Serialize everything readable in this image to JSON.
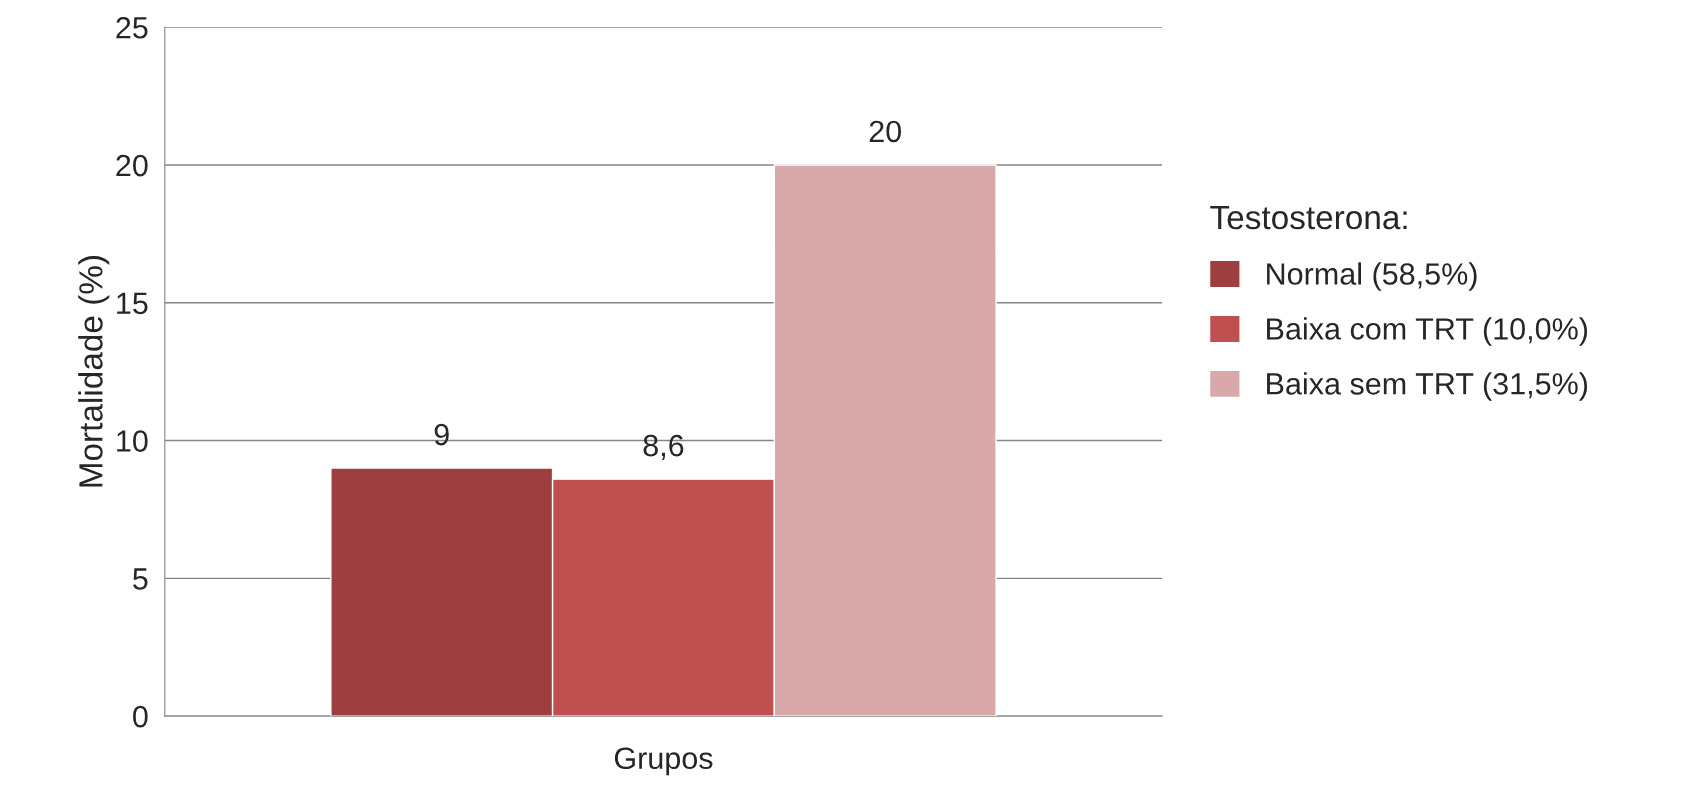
{
  "chart_data": {
    "type": "bar",
    "categories": [
      "Grupos"
    ],
    "ylabel": "Mortalidade (%)",
    "legend_title": "Testosterona:",
    "series": [
      {
        "name": "Normal (58,5%)",
        "color": "#9e3f3f",
        "values": [
          9
        ],
        "value_labels": [
          "9"
        ]
      },
      {
        "name": "Baixa com TRT (10,0%)",
        "color": "#c0504f",
        "values": [
          8.6
        ],
        "value_labels": [
          "8,6"
        ]
      },
      {
        "name": "Baixa sem TRT (31,5%)",
        "color": "#d9a9aa",
        "values": [
          20
        ],
        "value_labels": [
          "20"
        ]
      }
    ],
    "ylim": [
      0,
      25
    ],
    "yticks": [
      0,
      5,
      10,
      15,
      20,
      25
    ],
    "grid": "y",
    "legend": "right"
  }
}
